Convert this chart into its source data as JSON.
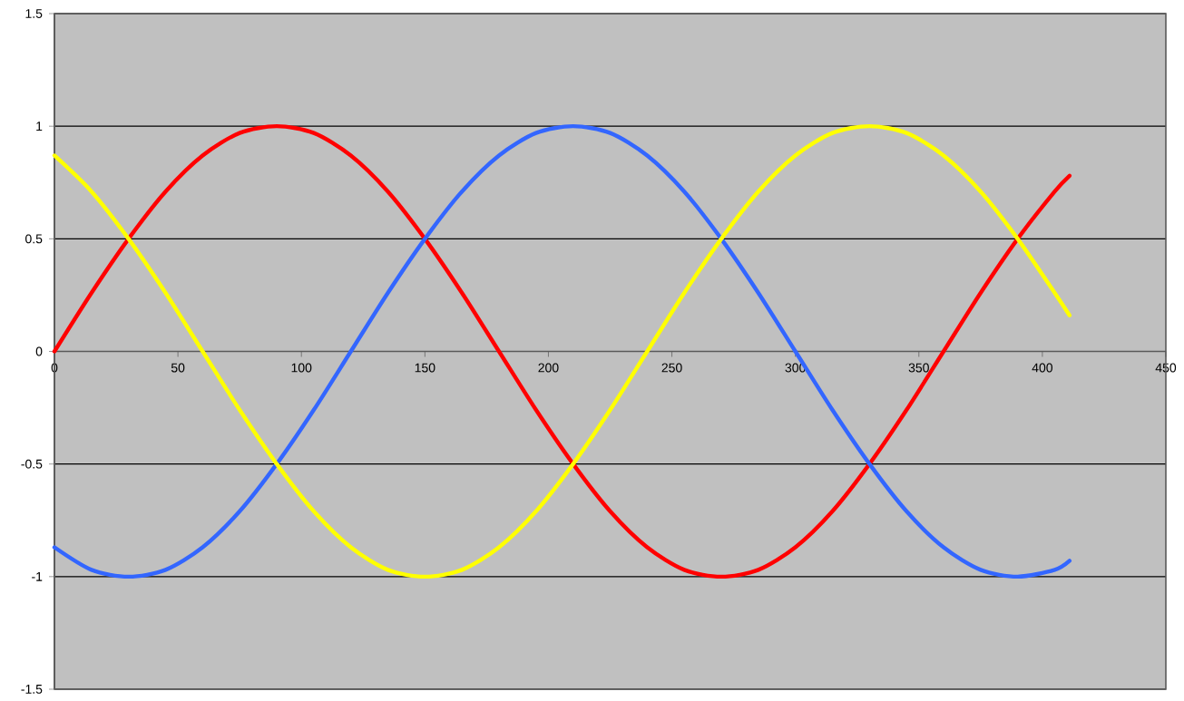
{
  "chart_data": {
    "type": "line",
    "grid": "y",
    "x": [
      0,
      15,
      30,
      45,
      60,
      75,
      90,
      105,
      120,
      135,
      150,
      165,
      180,
      195,
      210,
      225,
      240,
      255,
      270,
      285,
      300,
      315,
      330,
      345,
      360,
      375,
      390,
      405,
      411
    ],
    "series": [
      {
        "color": "#ff0000",
        "values": [
          0,
          0.26,
          0.5,
          0.71,
          0.87,
          0.97,
          1,
          0.97,
          0.87,
          0.71,
          0.5,
          0.26,
          0,
          -0.26,
          -0.5,
          -0.71,
          -0.87,
          -0.97,
          -1,
          -0.97,
          -0.87,
          -0.71,
          -0.5,
          -0.26,
          0,
          0.26,
          0.5,
          0.71,
          0.78
        ]
      },
      {
        "color": "#3366ff",
        "values": [
          -0.87,
          -0.97,
          -1,
          -0.97,
          -0.87,
          -0.71,
          -0.5,
          -0.26,
          0,
          0.26,
          0.5,
          0.71,
          0.87,
          0.97,
          1,
          0.97,
          0.87,
          0.71,
          0.5,
          0.26,
          0,
          -0.26,
          -0.5,
          -0.71,
          -0.87,
          -0.97,
          -1,
          -0.97,
          -0.93
        ]
      },
      {
        "color": "#ffff00",
        "values": [
          0.87,
          0.71,
          0.5,
          0.26,
          0,
          -0.26,
          -0.5,
          -0.71,
          -0.87,
          -0.97,
          -1,
          -0.97,
          -0.87,
          -0.71,
          -0.5,
          -0.26,
          0,
          0.26,
          0.5,
          0.71,
          0.87,
          0.97,
          1,
          0.97,
          0.87,
          0.71,
          0.5,
          0.26,
          0.16
        ]
      }
    ],
    "xlim": [
      0,
      450
    ],
    "ylim": [
      -1.5,
      1.5
    ],
    "xticks": [
      0,
      50,
      100,
      150,
      200,
      250,
      300,
      350,
      400,
      450
    ],
    "yticks": [
      -1.5,
      -1,
      -0.5,
      0,
      0.5,
      1,
      1.5
    ]
  }
}
